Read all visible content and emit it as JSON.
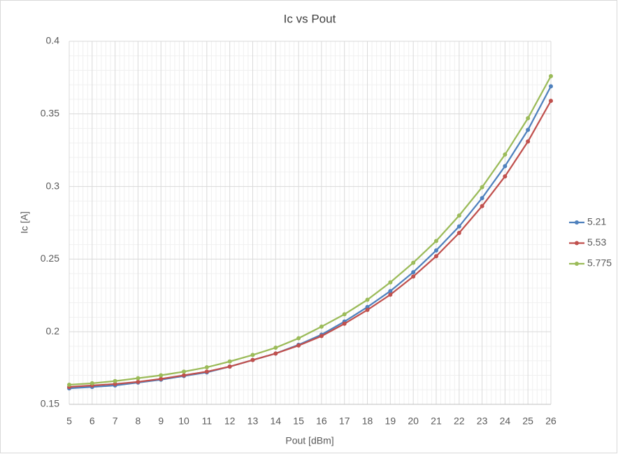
{
  "chart_data": {
    "type": "line",
    "title": "Ic vs Pout",
    "x_label": "Pout [dBm]",
    "y_label": "Ic [A]",
    "x": [
      5,
      6,
      7,
      8,
      9,
      10,
      11,
      12,
      13,
      14,
      15,
      16,
      17,
      18,
      19,
      20,
      21,
      22,
      23,
      24,
      25,
      26
    ],
    "series": [
      {
        "name": "5.21",
        "color": "#4f81bd",
        "values": [
          0.161,
          0.162,
          0.163,
          0.165,
          0.167,
          0.1695,
          0.172,
          0.176,
          0.1805,
          0.185,
          0.191,
          0.198,
          0.207,
          0.217,
          0.228,
          0.241,
          0.256,
          0.2725,
          0.292,
          0.314,
          0.339,
          0.369
        ]
      },
      {
        "name": "5.53",
        "color": "#c0504d",
        "values": [
          0.162,
          0.163,
          0.164,
          0.1655,
          0.1675,
          0.17,
          0.1725,
          0.176,
          0.1805,
          0.185,
          0.1905,
          0.197,
          0.2055,
          0.215,
          0.2255,
          0.238,
          0.252,
          0.268,
          0.2865,
          0.307,
          0.331,
          0.359
        ]
      },
      {
        "name": "5.775",
        "color": "#9bbb59",
        "values": [
          0.1635,
          0.1645,
          0.166,
          0.168,
          0.17,
          0.1725,
          0.1755,
          0.1795,
          0.184,
          0.189,
          0.1955,
          0.2035,
          0.212,
          0.222,
          0.234,
          0.2475,
          0.2625,
          0.28,
          0.2995,
          0.322,
          0.347,
          0.376
        ]
      }
    ],
    "xlim": [
      5,
      26
    ],
    "xticks": [
      5,
      6,
      7,
      8,
      9,
      10,
      11,
      12,
      13,
      14,
      15,
      16,
      17,
      18,
      19,
      20,
      21,
      22,
      23,
      24,
      25,
      26
    ],
    "ylim": [
      0.15,
      0.4
    ],
    "yticks": [
      0.15,
      0.2,
      0.25,
      0.3,
      0.35,
      0.4
    ],
    "grid": true,
    "legend": "right"
  }
}
